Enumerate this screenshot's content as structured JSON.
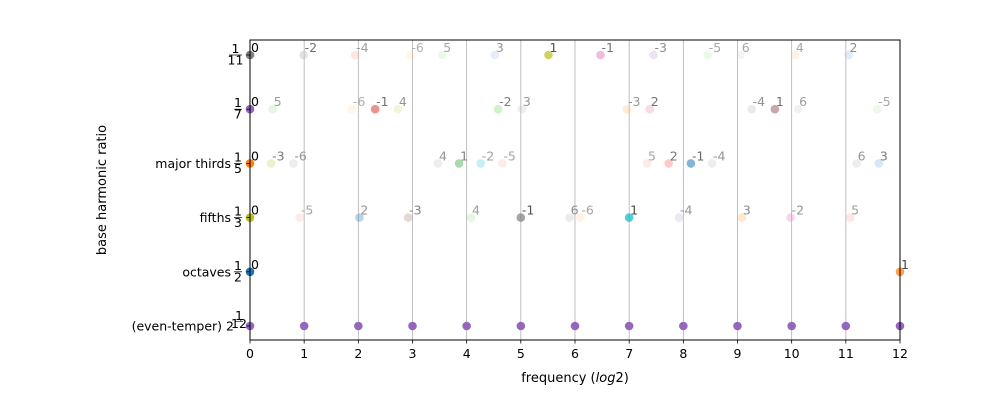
{
  "chart_data": {
    "type": "scatter",
    "xlabel": "frequency (log2)",
    "ylabel": "base harmonic ratio",
    "xlim": [
      0,
      12
    ],
    "x_ticks": [
      "0",
      "1",
      "2",
      "3",
      "4",
      "5",
      "6",
      "7",
      "8",
      "9",
      "10",
      "11",
      "12"
    ],
    "grid": "vertical",
    "rows": [
      {
        "label": "(even-temper) 2^(1/12)",
        "label_text": "(even-temper) 2",
        "frac_num": "1",
        "frac_den": "12",
        "frac_style": "superscript",
        "points": [
          {
            "x": 0,
            "color": "#9467bd",
            "alpha": 1
          },
          {
            "x": 1,
            "color": "#9467bd",
            "alpha": 1
          },
          {
            "x": 2,
            "color": "#9467bd",
            "alpha": 1
          },
          {
            "x": 3,
            "color": "#9467bd",
            "alpha": 1
          },
          {
            "x": 4,
            "color": "#9467bd",
            "alpha": 1
          },
          {
            "x": 5,
            "color": "#9467bd",
            "alpha": 1
          },
          {
            "x": 6,
            "color": "#9467bd",
            "alpha": 1
          },
          {
            "x": 7,
            "color": "#9467bd",
            "alpha": 1
          },
          {
            "x": 8,
            "color": "#9467bd",
            "alpha": 1
          },
          {
            "x": 9,
            "color": "#9467bd",
            "alpha": 1
          },
          {
            "x": 10,
            "color": "#9467bd",
            "alpha": 1
          },
          {
            "x": 11,
            "color": "#9467bd",
            "alpha": 1
          },
          {
            "x": 12,
            "color": "#9467bd",
            "alpha": 1
          }
        ]
      },
      {
        "label": "octaves 1/2",
        "label_text": "octaves",
        "frac_num": "1",
        "frac_den": "2",
        "frac_style": "fraction",
        "points": [
          {
            "x": 0,
            "text": "0",
            "color": "#1f77b4",
            "alpha": 1
          },
          {
            "x": 12,
            "text": "1",
            "color": "#ff7f0e",
            "alpha": 0.75
          }
        ]
      },
      {
        "label": "fifths 1/3",
        "label_text": "fifths",
        "frac_num": "1",
        "frac_den": "3",
        "frac_style": "fraction",
        "points": [
          {
            "x": 0,
            "text": "0",
            "color": "#bcbd22",
            "alpha": 1
          },
          {
            "x": 0.92,
            "text": "-5",
            "color": "#ff9896",
            "alpha": 0.2
          },
          {
            "x": 2.02,
            "text": "2",
            "color": "#1f77b4",
            "alpha": 0.3
          },
          {
            "x": 2.92,
            "text": "-3",
            "color": "#c49c94",
            "alpha": 0.4
          },
          {
            "x": 4.08,
            "text": "4",
            "color": "#98df8a",
            "alpha": 0.25
          },
          {
            "x": 5.0,
            "text": "-1",
            "color": "#7f7f7f",
            "alpha": 0.7
          },
          {
            "x": 5.9,
            "text": "6",
            "color": "#c7c7c7",
            "alpha": 0.35
          },
          {
            "x": 6.1,
            "text": "-6",
            "color": "#ffbb78",
            "alpha": 0.2
          },
          {
            "x": 7.0,
            "text": "1",
            "color": "#17becf",
            "alpha": 0.75
          },
          {
            "x": 7.92,
            "text": "-4",
            "color": "#c5b0d5",
            "alpha": 0.3
          },
          {
            "x": 9.08,
            "text": "3",
            "color": "#ffbb78",
            "alpha": 0.35
          },
          {
            "x": 9.98,
            "text": "-2",
            "color": "#e377c2",
            "alpha": 0.3
          },
          {
            "x": 11.08,
            "text": "5",
            "color": "#ff9896",
            "alpha": 0.25
          }
        ]
      },
      {
        "label": "major thirds 1/5",
        "label_text": "major thirds",
        "frac_num": "1",
        "frac_den": "5",
        "frac_style": "fraction",
        "points": [
          {
            "x": 0,
            "text": "0",
            "color": "#ff7f0e",
            "alpha": 1
          },
          {
            "x": 0.39,
            "text": "-3",
            "color": "#dbdb8d",
            "alpha": 0.45
          },
          {
            "x": 0.8,
            "text": "-6",
            "color": "#c7c7c7",
            "alpha": 0.3
          },
          {
            "x": 3.47,
            "text": "4",
            "color": "#c7c7c7",
            "alpha": 0.3
          },
          {
            "x": 3.86,
            "text": "1",
            "color": "#2ca02c",
            "alpha": 0.4
          },
          {
            "x": 4.26,
            "text": "-2",
            "color": "#17becf",
            "alpha": 0.25
          },
          {
            "x": 4.66,
            "text": "-5",
            "color": "#ff9896",
            "alpha": 0.2
          },
          {
            "x": 7.33,
            "text": "5",
            "color": "#ff9896",
            "alpha": 0.2
          },
          {
            "x": 7.73,
            "text": "2",
            "color": "#ff9896",
            "alpha": 0.5
          },
          {
            "x": 8.14,
            "text": "-1",
            "color": "#1f77b4",
            "alpha": 0.55
          },
          {
            "x": 8.53,
            "text": "-4",
            "color": "#c7c7c7",
            "alpha": 0.3
          },
          {
            "x": 11.2,
            "text": "6",
            "color": "#c7c7c7",
            "alpha": 0.3
          },
          {
            "x": 11.61,
            "text": "3",
            "color": "#aec7e8",
            "alpha": 0.45
          }
        ]
      },
      {
        "label": "1/7",
        "label_text": "",
        "frac_num": "1",
        "frac_den": "7",
        "frac_style": "fraction",
        "points": [
          {
            "x": 0,
            "text": "0",
            "color": "#9467bd",
            "alpha": 1
          },
          {
            "x": 0.42,
            "text": "5",
            "color": "#98df8a",
            "alpha": 0.25
          },
          {
            "x": 1.88,
            "text": "-6",
            "color": "#ffbb78",
            "alpha": 0.15
          },
          {
            "x": 2.31,
            "text": "-1",
            "color": "#d62728",
            "alpha": 0.5
          },
          {
            "x": 2.73,
            "text": "4",
            "color": "#dbdb8d",
            "alpha": 0.3
          },
          {
            "x": 4.58,
            "text": "-2",
            "color": "#98df8a",
            "alpha": 0.45
          },
          {
            "x": 5.02,
            "text": "3",
            "color": "#c7c7c7",
            "alpha": 0.3
          },
          {
            "x": 6.96,
            "text": "-3",
            "color": "#ffbb78",
            "alpha": 0.3
          },
          {
            "x": 7.38,
            "text": "2",
            "color": "#f7b6d2",
            "alpha": 0.5
          },
          {
            "x": 9.26,
            "text": "-4",
            "color": "#c5b0d5",
            "alpha": 0.3
          },
          {
            "x": 9.69,
            "text": "1",
            "color": "#8c564b",
            "alpha": 0.5
          },
          {
            "x": 10.12,
            "text": "6",
            "color": "#c7c7c7",
            "alpha": 0.25
          },
          {
            "x": 11.58,
            "text": "-5",
            "color": "#98df8a",
            "alpha": 0.2
          }
        ]
      },
      {
        "label": "1/11",
        "label_text": "",
        "frac_num": "1",
        "frac_den": "11",
        "frac_style": "fraction",
        "points": [
          {
            "x": 0,
            "text": "0",
            "color": "#7f7f7f",
            "alpha": 1
          },
          {
            "x": 0.99,
            "text": "-2",
            "color": "#c7c7c7",
            "alpha": 0.5
          },
          {
            "x": 1.94,
            "text": "-4",
            "color": "#ff9896",
            "alpha": 0.25
          },
          {
            "x": 2.96,
            "text": "-6",
            "color": "#ffbb78",
            "alpha": 0.15
          },
          {
            "x": 3.55,
            "text": "5",
            "color": "#98df8a",
            "alpha": 0.2
          },
          {
            "x": 4.52,
            "text": "3",
            "color": "#aec7e8",
            "alpha": 0.3
          },
          {
            "x": 5.51,
            "text": "1",
            "color": "#bcbd22",
            "alpha": 0.7
          },
          {
            "x": 6.47,
            "text": "-1",
            "color": "#e377c2",
            "alpha": 0.5
          },
          {
            "x": 7.45,
            "text": "-3",
            "color": "#c5b0d5",
            "alpha": 0.35
          },
          {
            "x": 8.45,
            "text": "-5",
            "color": "#98df8a",
            "alpha": 0.2
          },
          {
            "x": 9.06,
            "text": "6",
            "color": "#c7c7c7",
            "alpha": 0.2
          },
          {
            "x": 10.06,
            "text": "4",
            "color": "#ffbb78",
            "alpha": 0.2
          },
          {
            "x": 11.05,
            "text": "2",
            "color": "#aec7e8",
            "alpha": 0.35
          }
        ]
      }
    ]
  }
}
